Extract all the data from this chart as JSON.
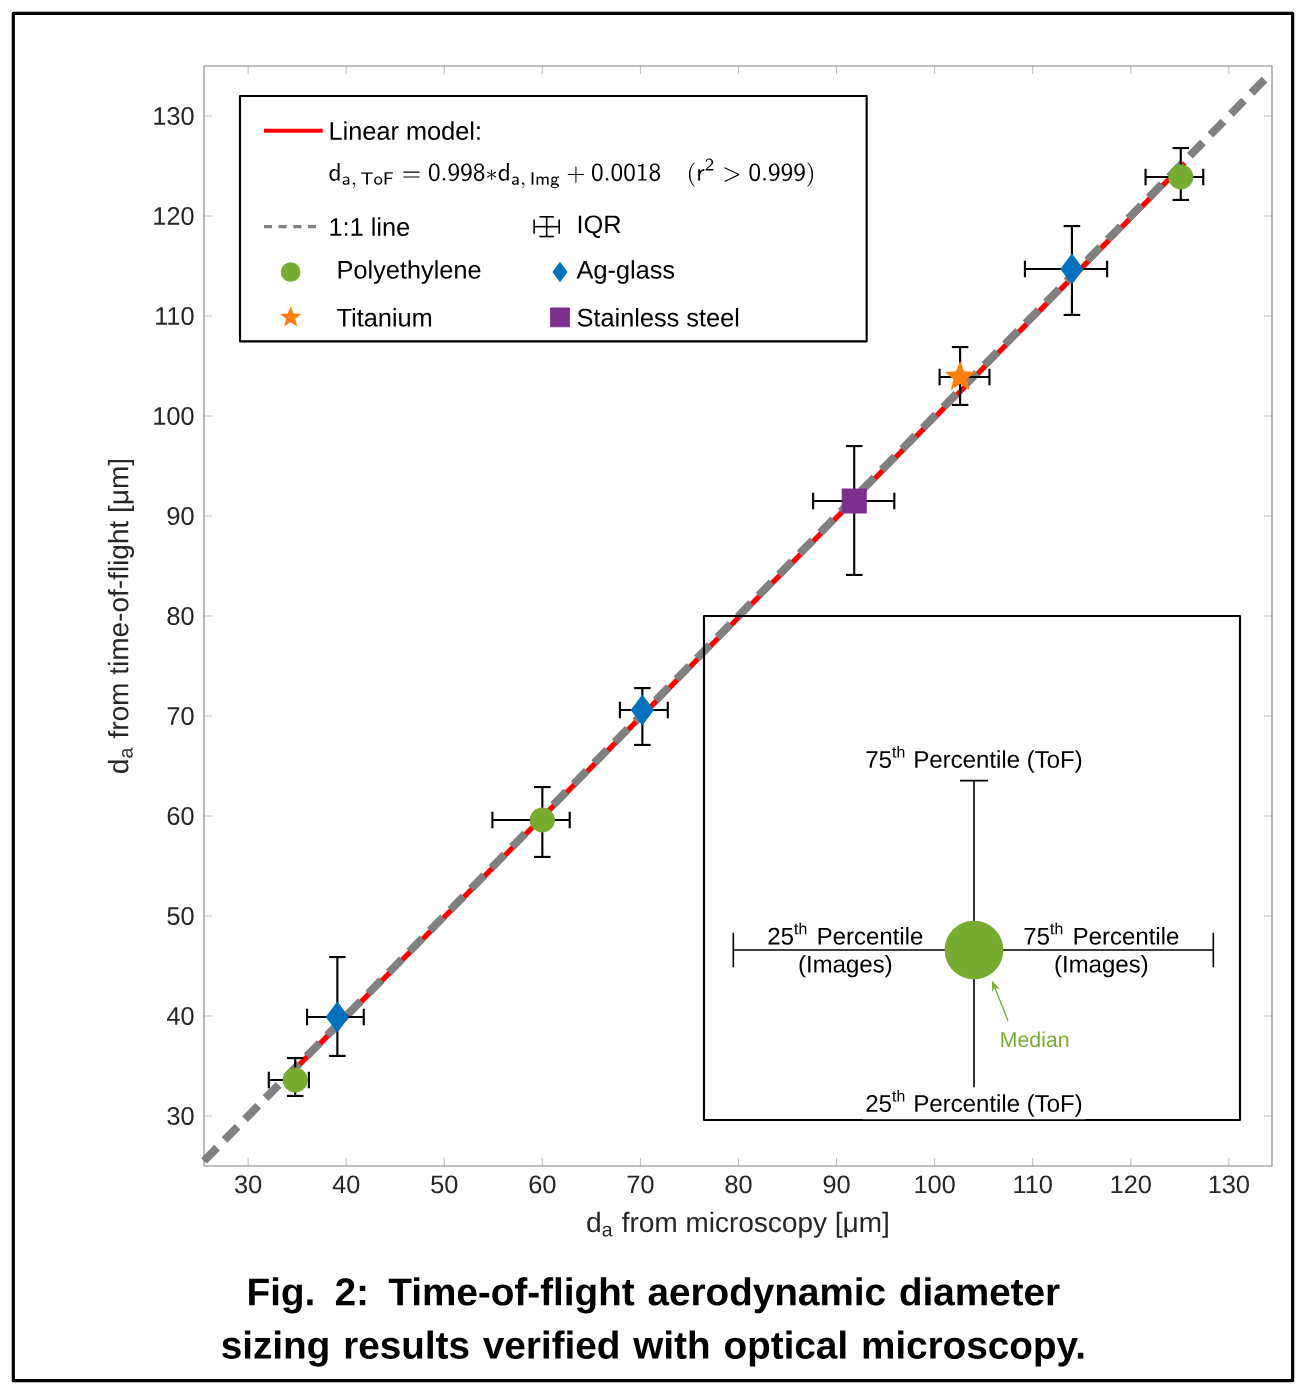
{
  "chart_data": {
    "type": "scatter",
    "title": "Fig. 2: Time-of-flight aerodynamic diameter sizing results verified with optical microscopy.",
    "xlabel": "d$_{a}$ from microscopy [μm]",
    "ylabel": "d$_{a}$ from time-of-flight [μm]",
    "xlim": [
      25.5,
      134.4
    ],
    "ylim": [
      25,
      135
    ],
    "xticks": [
      30,
      40,
      50,
      60,
      70,
      80,
      90,
      100,
      110,
      120,
      130
    ],
    "yticks": [
      30,
      40,
      50,
      60,
      70,
      80,
      90,
      100,
      110,
      120,
      130
    ],
    "legend": "top left",
    "series": [
      {
        "name": "Linear model:",
        "type": "line",
        "color": "#ff0000",
        "line_style": "solid",
        "x": [
          34.5,
          125.5
        ],
        "values": [
          34.4,
          125.3
        ]
      },
      {
        "name": "1:1 line",
        "type": "line",
        "color": "#808080",
        "line_style": "dashed",
        "x": [
          25.5,
          134.4
        ],
        "values": [
          25.5,
          134.4
        ]
      },
      {
        "name": "Polyethylene",
        "type": "scatter",
        "marker": "circle",
        "color": "#77ac30",
        "x": [
          34.8,
          60.0,
          125.1
        ],
        "values": [
          33.6,
          59.6,
          123.9
        ],
        "errors": [
          [
            31.9,
            35.9
          ],
          [
            55.8,
            63.0
          ],
          [
            121.5,
            126.9
          ]
        ],
        "xerrors": [
          [
            32.0,
            36.3
          ],
          [
            54.8,
            62.9
          ],
          [
            121.4,
            127.5
          ]
        ]
      },
      {
        "name": "Ag-glass",
        "type": "scatter",
        "marker": "diamond",
        "color": "#0072bd",
        "x": [
          39.1,
          70.2,
          114.0
        ],
        "values": [
          39.9,
          70.6,
          114.7
        ],
        "errors": [
          [
            35.9,
            46.0
          ],
          [
            67.0,
            72.9
          ],
          [
            110.0,
            119.1
          ]
        ],
        "xerrors": [
          [
            35.9,
            41.9
          ],
          [
            67.8,
            72.9
          ],
          [
            109.1,
            117.7
          ]
        ]
      },
      {
        "name": "Titanium",
        "type": "scatter",
        "marker": "star",
        "color": "#ff7f0e",
        "x": [
          102.6
        ],
        "values": [
          103.9
        ],
        "errors": [
          [
            101.0,
            107.0
          ]
        ],
        "xerrors": [
          [
            100.4,
            105.7
          ]
        ]
      },
      {
        "name": "Stainless steel",
        "type": "scatter",
        "marker": "square",
        "color": "#7e2f8e",
        "x": [
          91.8
        ],
        "values": [
          91.5
        ],
        "errors": [
          [
            84.0,
            97.1
          ]
        ],
        "xerrors": [
          [
            87.5,
            96.0
          ]
        ]
      }
    ],
    "annotations": [
      "\\mathsf{d_{a,\\,ToF}=0.998{*}d_{a,\\,Img}+0.0018\\quad(r^{2}>0.999)}",
      "IQR",
      "75$^{th}$ Percentile (ToF)",
      "25$^{th}$ Percentile (Images)",
      "75$^{th}$ Percentile (Images)",
      "25$^{th}$ Percentile (ToF)",
      "Median"
    ]
  }
}
